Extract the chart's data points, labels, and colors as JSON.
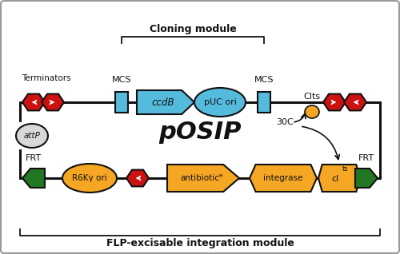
{
  "bg_color": "#f2f2f2",
  "border_color": "#999999",
  "title": "pOSIP",
  "cloning_module_label": "Cloning module",
  "flp_module_label": "FLP-excisable integration module",
  "terminators_label": "Terminators",
  "mcs_label": "MCS",
  "ccdb_label": "ccdB",
  "puc_ori_label": "pUC ori",
  "attp_label": "attP",
  "frt_label": "FRT",
  "r6ky_label": "R6Kγ ori",
  "antibiotic_label": "antibioticᴿ",
  "integrase_label": "integrase",
  "clts_annot": "CIts",
  "temp_label": "30C",
  "line_color": "#111111",
  "red_color": "#cc1111",
  "blue_color": "#55bbdd",
  "green_color": "#227722",
  "orange_color": "#f5a623",
  "gray_color": "#d8d8d8",
  "white_color": "#ffffff"
}
